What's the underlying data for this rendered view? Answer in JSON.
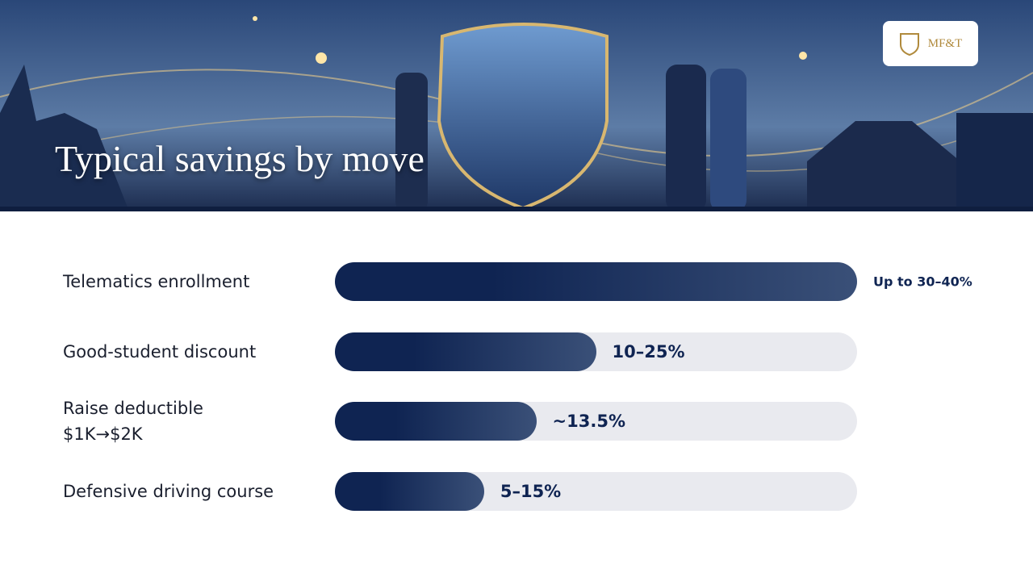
{
  "header": {
    "title": "Typical savings by move"
  },
  "logo": {
    "text": "MF&T"
  },
  "chart_data": {
    "type": "hbar",
    "categories": [
      "Telematics enrollment",
      "Good-student discount",
      "Raise deductible $1K→$2K",
      "Defensive driving course"
    ],
    "values": [
      35,
      17.5,
      13.5,
      10
    ],
    "value_labels": [
      "Up to 30–40%",
      "10–25%",
      "~13.5%",
      "5–15%"
    ],
    "xlim": [
      0,
      35
    ],
    "color": "#0f2452",
    "track_color": "#e9eaef"
  }
}
